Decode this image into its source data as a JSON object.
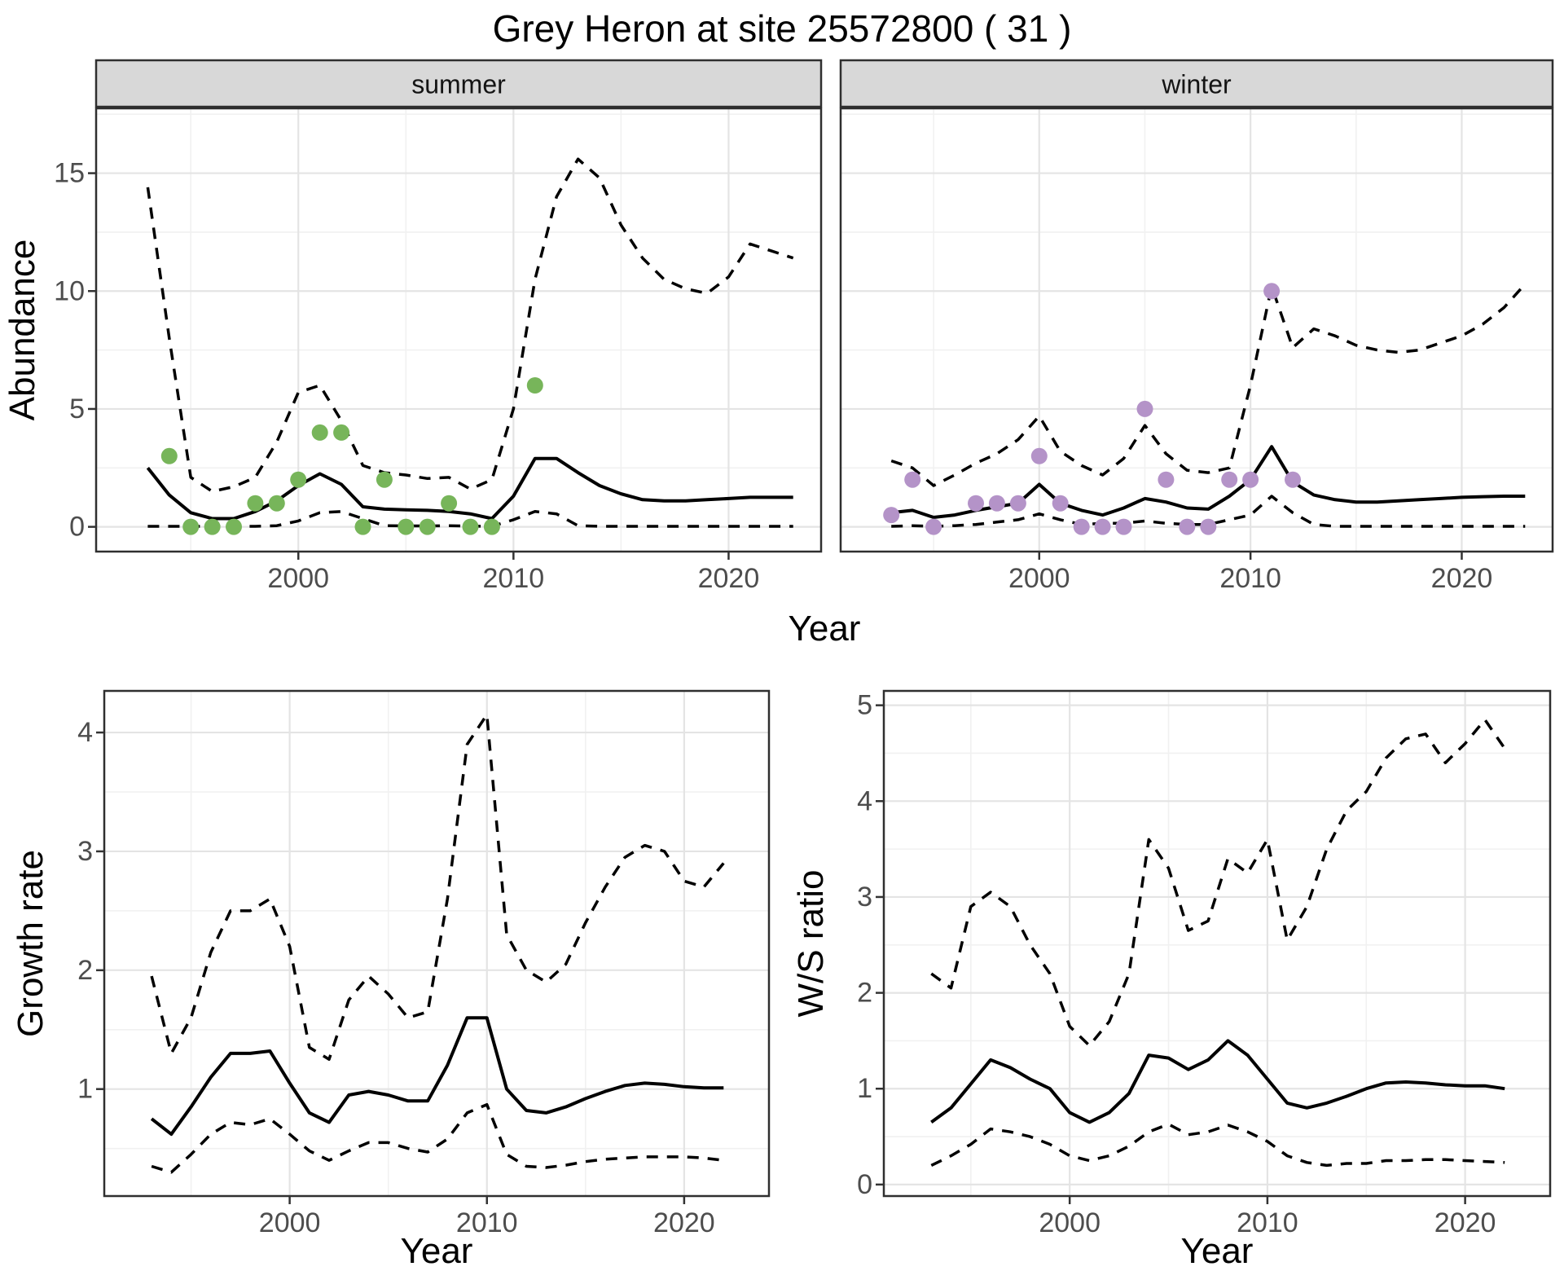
{
  "title": "Grey Heron at site 25572800 ( 31 )",
  "shared_x_axis_label": "Year",
  "colors": {
    "summer_points": "#77b55a",
    "winter_points": "#b493c8",
    "line": "#000000",
    "grid_major": "#e4e4e4",
    "grid_minor": "#f1f1f1",
    "strip_bg": "#d8d8d8",
    "panel_border": "#2f2f2f",
    "tick_text": "#4d4d4d",
    "axis_title_text": "#000000"
  },
  "chart_data": [
    {
      "type": "line",
      "panel": "abundance-summer",
      "facet_label": "summer",
      "xlabel": "Year",
      "ylabel": "Abundance",
      "x_ticks": [
        2000,
        2010,
        2020
      ],
      "y_ticks": [
        0,
        5,
        10,
        15
      ],
      "x_minor": [
        1995,
        2005,
        2015
      ],
      "y_minor": [
        2.5,
        7.5,
        12.5,
        17.5
      ],
      "xlim": [
        1990.6,
        2024.3
      ],
      "ylim": [
        -1.05,
        17.75
      ],
      "legend_position": "none",
      "grid": true,
      "x": [
        1993,
        1994,
        1995,
        1996,
        1997,
        1998,
        1999,
        2000,
        2001,
        2002,
        2003,
        2004,
        2005,
        2006,
        2007,
        2008,
        2009,
        2010,
        2011,
        2012,
        2013,
        2014,
        2015,
        2016,
        2017,
        2018,
        2019,
        2020,
        2021,
        2022,
        2023
      ],
      "series": [
        {
          "name": "median_fit",
          "style": "solid",
          "values": [
            2.5,
            1.35,
            0.6,
            0.35,
            0.35,
            0.65,
            1.1,
            1.75,
            2.25,
            1.8,
            0.85,
            0.75,
            0.72,
            0.7,
            0.65,
            0.55,
            0.35,
            1.3,
            2.9,
            2.9,
            2.3,
            1.75,
            1.4,
            1.15,
            1.1,
            1.1,
            1.15,
            1.2,
            1.25,
            1.25,
            1.25
          ]
        },
        {
          "name": "upper_95ci",
          "style": "dashed",
          "values": [
            14.4,
            8.0,
            2.1,
            1.5,
            1.7,
            2.1,
            3.6,
            5.7,
            6.0,
            4.5,
            2.6,
            2.3,
            2.2,
            2.05,
            2.1,
            1.6,
            2.0,
            5.0,
            10.5,
            14.0,
            15.6,
            14.8,
            12.8,
            11.4,
            10.5,
            10.1,
            9.9,
            10.6,
            12.0,
            11.7,
            11.4
          ]
        },
        {
          "name": "lower_95ci",
          "style": "dashed",
          "values": [
            0.02,
            0.02,
            0.02,
            0.02,
            0.02,
            0.02,
            0.05,
            0.25,
            0.6,
            0.65,
            0.35,
            0.05,
            0.04,
            0.04,
            0.05,
            0.03,
            0.02,
            0.3,
            0.65,
            0.55,
            0.05,
            0.02,
            0.02,
            0.02,
            0.02,
            0.02,
            0.02,
            0.02,
            0.02,
            0.02,
            0.02
          ]
        }
      ],
      "observations": {
        "name": "observed_counts_summer",
        "color_key": "summer_points",
        "years": [
          1994,
          1995,
          1996,
          1997,
          1998,
          1999,
          2000,
          2001,
          2002,
          2003,
          2004,
          2005,
          2006,
          2007,
          2008,
          2009,
          2011
        ],
        "values": [
          3,
          0,
          0,
          0,
          1,
          1,
          2,
          4,
          4,
          0,
          2,
          0,
          0,
          1,
          0,
          0,
          6
        ]
      }
    },
    {
      "type": "line",
      "panel": "abundance-winter",
      "facet_label": "winter",
      "xlabel": "Year",
      "ylabel": "Abundance",
      "x_ticks": [
        2000,
        2010,
        2020
      ],
      "y_ticks": [
        0,
        5,
        10,
        15
      ],
      "x_minor": [
        1995,
        2005,
        2015
      ],
      "y_minor": [
        2.5,
        7.5,
        12.5,
        17.5
      ],
      "xlim": [
        1990.6,
        2024.3
      ],
      "ylim": [
        -1.05,
        17.75
      ],
      "legend_position": "none",
      "grid": true,
      "x": [
        1993,
        1994,
        1995,
        1996,
        1997,
        1998,
        1999,
        2000,
        2001,
        2002,
        2003,
        2004,
        2005,
        2006,
        2007,
        2008,
        2009,
        2010,
        2011,
        2012,
        2013,
        2014,
        2015,
        2016,
        2017,
        2018,
        2019,
        2020,
        2021,
        2022,
        2023
      ],
      "series": [
        {
          "name": "median_fit",
          "style": "solid",
          "values": [
            0.6,
            0.7,
            0.4,
            0.5,
            0.7,
            0.85,
            1.0,
            1.8,
            1.0,
            0.7,
            0.5,
            0.8,
            1.2,
            1.05,
            0.8,
            0.75,
            1.3,
            2.0,
            3.4,
            1.9,
            1.35,
            1.15,
            1.05,
            1.05,
            1.1,
            1.15,
            1.2,
            1.25,
            1.28,
            1.3,
            1.3
          ]
        },
        {
          "name": "upper_95ci",
          "style": "dashed",
          "values": [
            2.8,
            2.5,
            1.75,
            2.2,
            2.7,
            3.1,
            3.7,
            4.7,
            3.2,
            2.6,
            2.2,
            2.9,
            4.3,
            3.1,
            2.4,
            2.3,
            2.5,
            6.0,
            10.2,
            7.6,
            8.4,
            8.1,
            7.7,
            7.5,
            7.4,
            7.5,
            7.8,
            8.1,
            8.6,
            9.3,
            10.3
          ]
        },
        {
          "name": "lower_95ci",
          "style": "dashed",
          "values": [
            0.02,
            0.05,
            0.02,
            0.05,
            0.1,
            0.2,
            0.3,
            0.55,
            0.3,
            0.1,
            0.15,
            0.15,
            0.25,
            0.15,
            0.1,
            0.1,
            0.3,
            0.5,
            1.3,
            0.6,
            0.1,
            0.02,
            0.02,
            0.02,
            0.02,
            0.02,
            0.02,
            0.02,
            0.02,
            0.02,
            0.02
          ]
        }
      ],
      "observations": {
        "name": "observed_counts_winter",
        "color_key": "winter_points",
        "years": [
          1993,
          1994,
          1995,
          1997,
          1998,
          1999,
          2000,
          2001,
          2002,
          2003,
          2004,
          2005,
          2006,
          2007,
          2008,
          2009,
          2010,
          2011,
          2012
        ],
        "values": [
          0.5,
          2,
          0,
          1,
          1,
          1,
          3,
          1,
          0,
          0,
          0,
          5,
          2,
          0,
          0,
          2,
          2,
          10,
          2
        ]
      }
    },
    {
      "type": "line",
      "panel": "growth-rate",
      "facet_label": "",
      "xlabel": "Year",
      "ylabel": "Growth rate",
      "x_ticks": [
        2000,
        2010,
        2020
      ],
      "y_ticks": [
        1,
        2,
        3,
        4
      ],
      "x_minor": [
        1995,
        2005,
        2015
      ],
      "y_minor": [
        0.5,
        1.5,
        2.5,
        3.5
      ],
      "xlim": [
        1990.6,
        2024.3
      ],
      "ylim": [
        0.1,
        4.35
      ],
      "legend_position": "none",
      "grid": true,
      "x": [
        1993,
        1994,
        1995,
        1996,
        1997,
        1998,
        1999,
        2000,
        2001,
        2002,
        2003,
        2004,
        2005,
        2006,
        2007,
        2008,
        2009,
        2010,
        2011,
        2012,
        2013,
        2014,
        2015,
        2016,
        2017,
        2018,
        2019,
        2020,
        2021,
        2022
      ],
      "series": [
        {
          "name": "median_fit",
          "style": "solid",
          "values": [
            0.75,
            0.62,
            0.85,
            1.1,
            1.3,
            1.3,
            1.32,
            1.05,
            0.8,
            0.72,
            0.95,
            0.98,
            0.95,
            0.9,
            0.9,
            1.2,
            1.6,
            1.6,
            1.0,
            0.82,
            0.8,
            0.85,
            0.92,
            0.98,
            1.03,
            1.05,
            1.04,
            1.02,
            1.01,
            1.01
          ]
        },
        {
          "name": "upper_95ci",
          "style": "dashed",
          "values": [
            1.95,
            1.3,
            1.6,
            2.15,
            2.5,
            2.5,
            2.6,
            2.2,
            1.35,
            1.25,
            1.75,
            1.95,
            1.8,
            1.6,
            1.65,
            2.6,
            3.9,
            4.15,
            2.3,
            2.0,
            1.9,
            2.05,
            2.4,
            2.7,
            2.95,
            3.05,
            3.0,
            2.75,
            2.7,
            2.9
          ]
        },
        {
          "name": "lower_95ci",
          "style": "dashed",
          "values": [
            0.35,
            0.3,
            0.45,
            0.62,
            0.72,
            0.7,
            0.75,
            0.62,
            0.48,
            0.4,
            0.48,
            0.55,
            0.55,
            0.5,
            0.47,
            0.58,
            0.8,
            0.87,
            0.45,
            0.35,
            0.34,
            0.36,
            0.39,
            0.41,
            0.42,
            0.43,
            0.43,
            0.43,
            0.42,
            0.4
          ]
        }
      ]
    },
    {
      "type": "line",
      "panel": "ws-ratio",
      "facet_label": "",
      "xlabel": "Year",
      "ylabel": "W/S ratio",
      "x_ticks": [
        2000,
        2010,
        2020
      ],
      "y_ticks": [
        0,
        1,
        2,
        3,
        4,
        5
      ],
      "x_minor": [
        1995,
        2005,
        2015
      ],
      "y_minor": [
        0.5,
        1.5,
        2.5,
        3.5,
        4.5
      ],
      "xlim": [
        1990.6,
        2024.3
      ],
      "ylim": [
        -0.12,
        5.15
      ],
      "legend_position": "none",
      "grid": true,
      "x": [
        1993,
        1994,
        1995,
        1996,
        1997,
        1998,
        1999,
        2000,
        2001,
        2002,
        2003,
        2004,
        2005,
        2006,
        2007,
        2008,
        2009,
        2010,
        2011,
        2012,
        2013,
        2014,
        2015,
        2016,
        2017,
        2018,
        2019,
        2020,
        2021,
        2022
      ],
      "series": [
        {
          "name": "median_fit",
          "style": "solid",
          "values": [
            0.65,
            0.8,
            1.05,
            1.3,
            1.22,
            1.1,
            1.0,
            0.75,
            0.65,
            0.75,
            0.95,
            1.35,
            1.32,
            1.2,
            1.3,
            1.5,
            1.35,
            1.1,
            0.85,
            0.8,
            0.85,
            0.92,
            1.0,
            1.06,
            1.07,
            1.06,
            1.04,
            1.03,
            1.03,
            1.0
          ]
        },
        {
          "name": "upper_95ci",
          "style": "dashed",
          "values": [
            2.2,
            2.05,
            2.9,
            3.05,
            2.9,
            2.5,
            2.2,
            1.65,
            1.45,
            1.7,
            2.2,
            3.6,
            3.3,
            2.65,
            2.75,
            3.4,
            3.25,
            3.6,
            2.55,
            2.9,
            3.5,
            3.9,
            4.1,
            4.45,
            4.65,
            4.7,
            4.4,
            4.6,
            4.85,
            4.55
          ]
        },
        {
          "name": "lower_95ci",
          "style": "dashed",
          "values": [
            0.2,
            0.3,
            0.42,
            0.58,
            0.55,
            0.5,
            0.42,
            0.3,
            0.25,
            0.3,
            0.4,
            0.55,
            0.63,
            0.52,
            0.55,
            0.62,
            0.55,
            0.45,
            0.3,
            0.23,
            0.2,
            0.22,
            0.22,
            0.25,
            0.25,
            0.26,
            0.26,
            0.25,
            0.24,
            0.23
          ]
        }
      ]
    }
  ]
}
